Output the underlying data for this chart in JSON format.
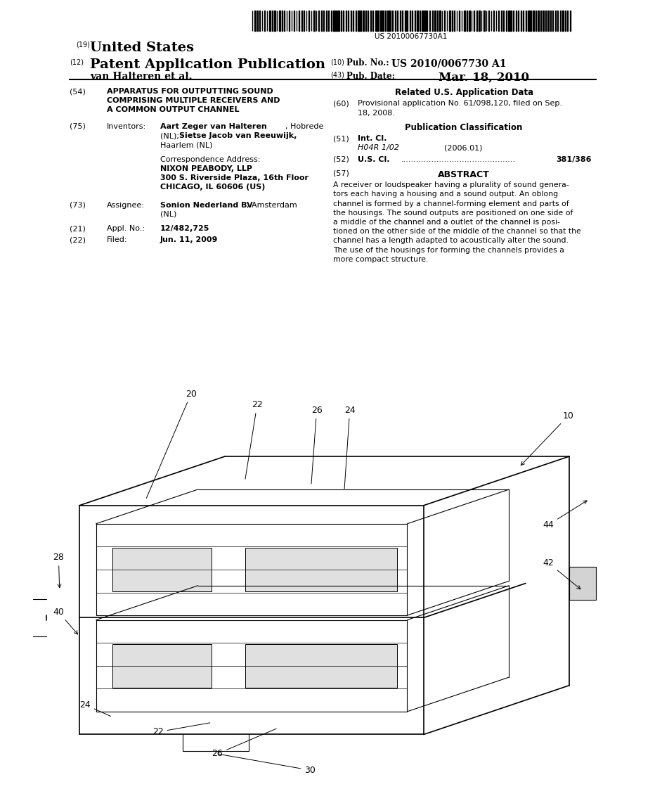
{
  "background_color": "#ffffff",
  "barcode_text": "US 20100067730A1",
  "patent_number": "US 2010/0067730 A1",
  "pub_date": "Mar. 18, 2010",
  "country": "United States",
  "doc_type": "Patent Application Publication",
  "inventor_last": "van Halteren et al.",
  "num_19": "(19)",
  "num_12": "(12)",
  "num_10": "(10)",
  "num_43": "(43)",
  "pub_no_label": "Pub. No.:",
  "pub_date_label": "Pub. Date:",
  "section54_num": "(54)",
  "section54_title_line1": "APPARATUS FOR OUTPUTTING SOUND",
  "section54_title_line2": "COMPRISING MULTIPLE RECEIVERS AND",
  "section54_title_line3": "A COMMON OUTPUT CHANNEL",
  "section75_num": "(75)",
  "section75_label": "Inventors:",
  "corr_label": "Correspondence Address:",
  "corr_line1": "NIXON PEABODY, LLP",
  "corr_line2": "300 S. Riverside Plaza, 16th Floor",
  "corr_line3": "CHICAGO, IL 60606 (US)",
  "section73_num": "(73)",
  "section73_label": "Assignee:",
  "section21_num": "(21)",
  "section21_label": "Appl. No.:",
  "section21_content": "12/482,725",
  "section22_num": "(22)",
  "section22_label": "Filed:",
  "section22_content": "Jun. 11, 2009",
  "related_header": "Related U.S. Application Data",
  "section60_num": "(60)",
  "pub_class_header": "Publication Classification",
  "section51_num": "(51)",
  "section51_label": "Int. Cl.",
  "section51_class": "H04R 1/02",
  "section51_year": "(2006.01)",
  "section52_num": "(52)",
  "section52_value": "381/386",
  "section57_num": "(57)",
  "section57_label": "ABSTRACT",
  "abstract_lines": [
    "A receiver or loudspeaker having a plurality of sound genera-",
    "tors each having a housing and a sound output. An oblong",
    "channel is formed by a channel-forming element and parts of",
    "the housings. The sound outputs are positioned on one side of",
    "a middle of the channel and a outlet of the channel is posi-",
    "tioned on the other side of the middle of the channel so that the",
    "channel has a length adapted to acoustically alter the sound.",
    "The use of the housings for forming the channels provides a",
    "more compact structure."
  ]
}
